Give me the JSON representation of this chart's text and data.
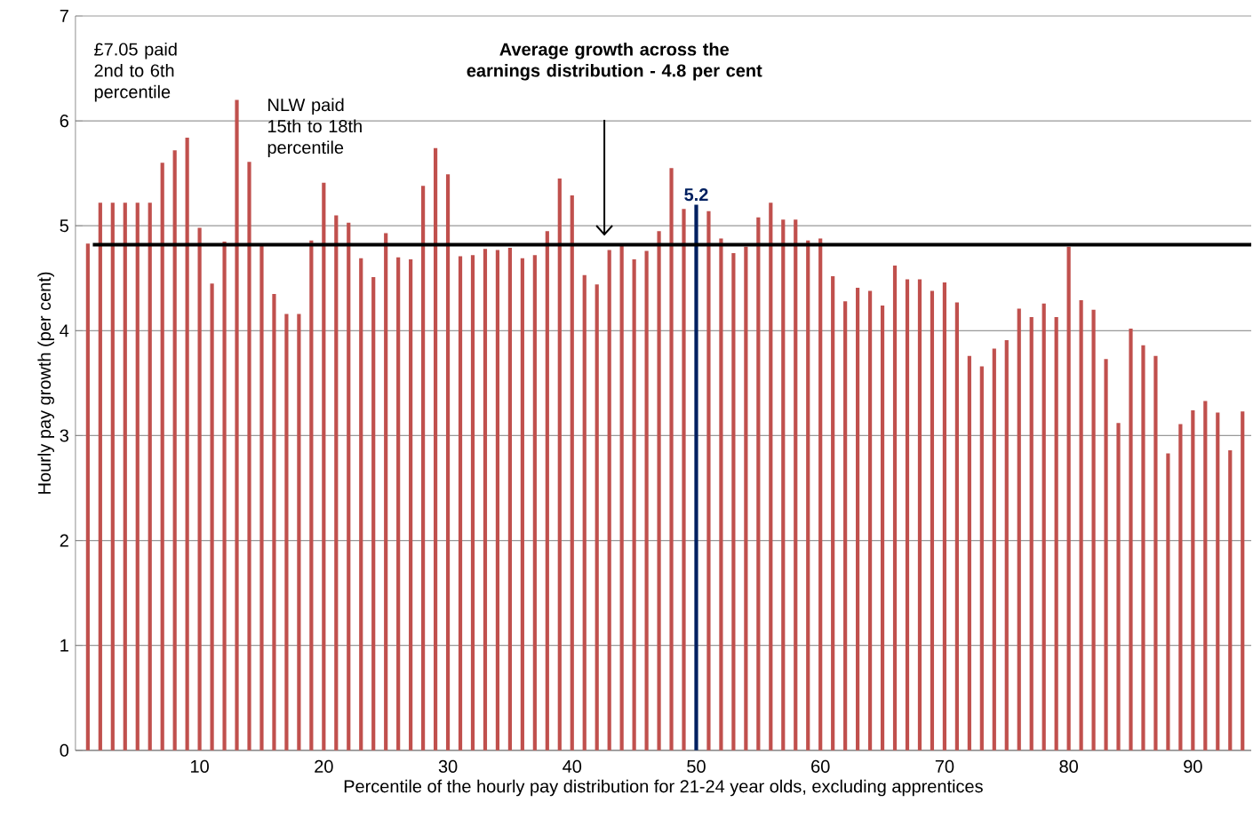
{
  "chart_data": {
    "type": "bar",
    "xlabel": "Percentile of the hourly pay distribution for 21-24 year olds, excluding apprentices",
    "ylabel": "Hourly pay growth (per cent)",
    "x": [
      1,
      2,
      3,
      4,
      5,
      6,
      7,
      8,
      9,
      10,
      11,
      12,
      13,
      14,
      15,
      16,
      17,
      18,
      19,
      20,
      21,
      22,
      23,
      24,
      25,
      26,
      27,
      28,
      29,
      30,
      31,
      32,
      33,
      34,
      35,
      36,
      37,
      38,
      39,
      40,
      41,
      42,
      43,
      44,
      45,
      46,
      47,
      48,
      49,
      50,
      51,
      52,
      53,
      54,
      55,
      56,
      57,
      58,
      59,
      60,
      61,
      62,
      63,
      64,
      65,
      66,
      67,
      68,
      69,
      70,
      71,
      72,
      73,
      74,
      75,
      76,
      77,
      78,
      79,
      80,
      81,
      82,
      83,
      84,
      85,
      86,
      87,
      88,
      89,
      90,
      91,
      92,
      93,
      94
    ],
    "values": [
      4.83,
      5.22,
      5.22,
      5.22,
      5.22,
      5.22,
      5.6,
      5.72,
      5.84,
      4.98,
      4.45,
      4.85,
      6.2,
      5.61,
      4.83,
      4.35,
      4.16,
      4.16,
      4.86,
      5.41,
      5.1,
      5.03,
      4.69,
      4.51,
      4.93,
      4.7,
      4.68,
      5.38,
      5.74,
      5.49,
      4.71,
      4.72,
      4.78,
      4.77,
      4.79,
      4.69,
      4.72,
      4.95,
      5.45,
      5.29,
      4.53,
      4.44,
      4.77,
      4.83,
      4.68,
      4.76,
      4.95,
      5.55,
      5.16,
      5.2,
      5.14,
      4.88,
      4.74,
      4.8,
      5.08,
      5.22,
      5.06,
      5.06,
      4.86,
      4.88,
      4.52,
      4.28,
      4.41,
      4.38,
      4.24,
      4.62,
      4.49,
      4.49,
      4.38,
      4.46,
      4.27,
      3.76,
      3.66,
      3.83,
      3.91,
      4.21,
      4.13,
      4.26,
      4.13,
      4.8,
      4.29,
      4.2,
      3.73,
      3.12,
      4.02,
      3.86,
      3.76,
      2.83,
      3.11,
      3.24,
      3.33,
      3.22,
      2.86,
      3.23
    ],
    "colors": [
      "#c0504d",
      "#c0504d",
      "#c0504d",
      "#c0504d",
      "#c0504d",
      "#c0504d",
      "#c0504d",
      "#c0504d",
      "#c0504d",
      "#c0504d",
      "#c0504d",
      "#c0504d",
      "#c0504d",
      "#c0504d",
      "#c0504d",
      "#c0504d",
      "#c0504d",
      "#c0504d",
      "#c0504d",
      "#c0504d",
      "#c0504d",
      "#c0504d",
      "#c0504d",
      "#c0504d",
      "#c0504d",
      "#c0504d",
      "#c0504d",
      "#c0504d",
      "#c0504d",
      "#c0504d",
      "#c0504d",
      "#c0504d",
      "#c0504d",
      "#c0504d",
      "#c0504d",
      "#c0504d",
      "#c0504d",
      "#c0504d",
      "#c0504d",
      "#c0504d",
      "#c0504d",
      "#c0504d",
      "#c0504d",
      "#c0504d",
      "#c0504d",
      "#c0504d",
      "#c0504d",
      "#c0504d",
      "#c0504d",
      "#002060",
      "#c0504d",
      "#c0504d",
      "#c0504d",
      "#c0504d",
      "#c0504d",
      "#c0504d",
      "#c0504d",
      "#c0504d",
      "#c0504d",
      "#c0504d",
      "#c0504d",
      "#c0504d",
      "#c0504d",
      "#c0504d",
      "#c0504d",
      "#c0504d",
      "#c0504d",
      "#c0504d",
      "#c0504d",
      "#c0504d",
      "#c0504d",
      "#c0504d",
      "#c0504d",
      "#c0504d",
      "#c0504d",
      "#c0504d",
      "#c0504d",
      "#c0504d",
      "#c0504d",
      "#c0504d",
      "#c0504d",
      "#c0504d",
      "#c0504d",
      "#c0504d",
      "#c0504d",
      "#c0504d",
      "#c0504d",
      "#c0504d",
      "#c0504d",
      "#c0504d",
      "#c0504d",
      "#c0504d",
      "#c0504d",
      "#c0504d"
    ],
    "value_labels": [
      null,
      null,
      null,
      null,
      null,
      null,
      null,
      null,
      null,
      null,
      null,
      null,
      null,
      null,
      null,
      null,
      null,
      null,
      null,
      null,
      null,
      null,
      null,
      null,
      null,
      null,
      null,
      null,
      null,
      null,
      null,
      null,
      null,
      null,
      null,
      null,
      null,
      null,
      null,
      null,
      null,
      null,
      null,
      null,
      null,
      null,
      null,
      null,
      null,
      "5.2",
      null,
      null,
      null,
      null,
      null,
      null,
      null,
      null,
      null,
      null,
      null,
      null,
      null,
      null,
      null,
      null,
      null,
      null,
      null,
      null,
      null,
      null,
      null,
      null,
      null,
      null,
      null,
      null,
      null,
      null,
      null,
      null,
      null,
      null,
      null,
      null,
      null,
      null,
      null,
      null,
      null,
      null,
      null,
      null
    ],
    "xlim": [
      0,
      94.7
    ],
    "xticks": [
      10,
      20,
      30,
      40,
      50,
      60,
      70,
      80,
      90
    ],
    "ylim": [
      0,
      7
    ],
    "yticks": [
      0,
      1,
      2,
      3,
      4,
      5,
      6,
      7
    ],
    "grid": "y",
    "ref_lines": [
      {
        "axis": "y",
        "value": 4.82,
        "label": "Average growth across the  earnings distribution - 4.8 per cent",
        "color": "#000000"
      }
    ],
    "annotations": [
      "£7.05 paid 2nd to 6th percentile",
      "NLW paid 15th to 18th percentile"
    ]
  }
}
